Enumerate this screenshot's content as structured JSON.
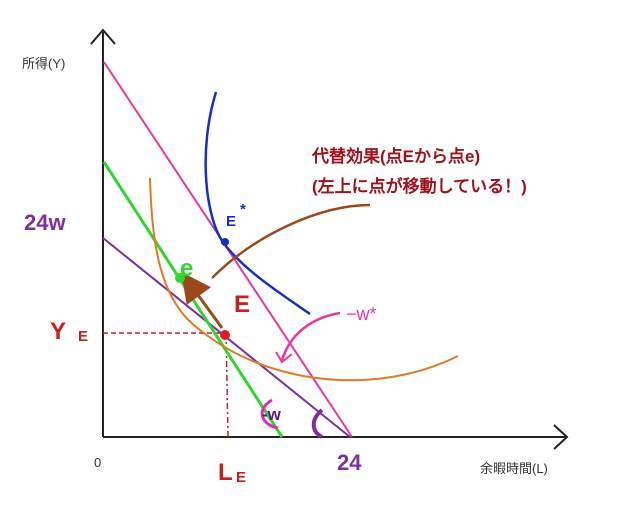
{
  "labels": {
    "y_axis": "所得(Y)",
    "x_axis": "余暇時間(L)",
    "origin": "0",
    "income_intercept": "24w",
    "time_endowment": "24",
    "y_e": "Y",
    "y_e_sub": "E",
    "l_e": "L",
    "l_e_sub": "E",
    "point_E": "E",
    "point_e": "e",
    "point_E_star": "E",
    "point_E_star_sup": "*",
    "slope_w": "-w",
    "slope_w_star": "−w*",
    "note_line1": "代替効果(点Eから点e)",
    "note_line2": "(左上に点が移動している！)"
  },
  "colors": {
    "axis": "#222222",
    "original_budget": "#7b2fa2",
    "new_budget": "#e8389e",
    "compensated_budget": "#2fd62f",
    "indifference_orange": "#e07b2a",
    "indifference_blue": "#1530c8",
    "arrow": "#9a4a1a",
    "point_E": "#e02020",
    "guides": "#c8201e",
    "note": "#a0101a"
  }
}
